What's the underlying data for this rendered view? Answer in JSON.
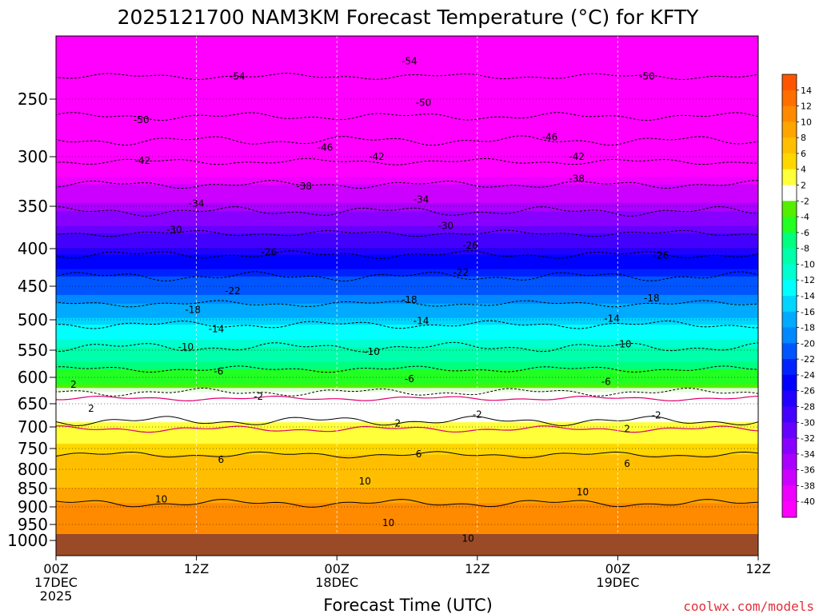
{
  "chart_data": {
    "type": "contour",
    "title": "2025121700 NAM3KM Forecast Temperature (°C) for KFTY",
    "xlabel": "Forecast Time (UTC)",
    "ylabel": "",
    "x_range_hours": [
      0,
      60
    ],
    "x_ticks": [
      {
        "hour": 0,
        "lines": [
          "00Z",
          "17DEC",
          "2025"
        ]
      },
      {
        "hour": 12,
        "lines": [
          "12Z"
        ]
      },
      {
        "hour": 24,
        "lines": [
          "00Z",
          "18DEC"
        ]
      },
      {
        "hour": 36,
        "lines": [
          "12Z"
        ]
      },
      {
        "hour": 48,
        "lines": [
          "00Z",
          "19DEC"
        ]
      },
      {
        "hour": 60,
        "lines": [
          "12Z"
        ]
      }
    ],
    "y_range_hpa": [
      200,
      1040
    ],
    "y_ticks": [
      250,
      300,
      350,
      400,
      450,
      500,
      550,
      600,
      650,
      700,
      750,
      800,
      850,
      900,
      950,
      1000
    ],
    "surface_pressure_hpa": 990,
    "colorbar_labels": [
      14,
      12,
      10,
      8,
      6,
      4,
      2,
      -2,
      -4,
      -6,
      -8,
      -10,
      -12,
      -14,
      -16,
      -18,
      -20,
      -22,
      -24,
      -26,
      -28,
      -30,
      -32,
      -34,
      -36,
      -38,
      -40
    ],
    "colorbar_colors": [
      "#ff5500",
      "#ff6f00",
      "#ff8a00",
      "#ffa500",
      "#ffbf00",
      "#ffd700",
      "#ffff3a",
      "#ffffff",
      "#55ee00",
      "#22ff22",
      "#00ff7f",
      "#00ffaa",
      "#00ffd0",
      "#00ffff",
      "#00d5ff",
      "#00aaff",
      "#0088ff",
      "#0055ff",
      "#0022ff",
      "#0000ff",
      "#2200ff",
      "#4400ff",
      "#6600ff",
      "#8800ff",
      "#aa00ff",
      "#cc00ff",
      "#ee00ff",
      "#ff00ff"
    ],
    "isotherms": [
      {
        "temp": -54,
        "pressure_hpa": 232
      },
      {
        "temp": -50,
        "pressure_hpa": 265
      },
      {
        "temp": -46,
        "pressure_hpa": 286
      },
      {
        "temp": -42,
        "pressure_hpa": 305
      },
      {
        "temp": -38,
        "pressure_hpa": 328
      },
      {
        "temp": -34,
        "pressure_hpa": 356
      },
      {
        "temp": -30,
        "pressure_hpa": 382
      },
      {
        "temp": -26,
        "pressure_hpa": 408
      },
      {
        "temp": -22,
        "pressure_hpa": 437
      },
      {
        "temp": -18,
        "pressure_hpa": 476
      },
      {
        "temp": -14,
        "pressure_hpa": 508
      },
      {
        "temp": -10,
        "pressure_hpa": 545
      },
      {
        "temp": -6,
        "pressure_hpa": 585
      },
      {
        "temp": -2,
        "pressure_hpa": 628
      },
      {
        "temp": 2,
        "pressure_hpa": 687
      },
      {
        "temp": 6,
        "pressure_hpa": 765
      },
      {
        "temp": 10,
        "pressure_hpa": 890
      }
    ],
    "contour_labels": [
      {
        "text": "-54",
        "hour": 15.5,
        "pressure_hpa": 232
      },
      {
        "text": "-54",
        "hour": 30.2,
        "pressure_hpa": 220
      },
      {
        "text": "-50",
        "hour": 50.5,
        "pressure_hpa": 232
      },
      {
        "text": "-50",
        "hour": 7.3,
        "pressure_hpa": 268
      },
      {
        "text": "-50",
        "hour": 31.4,
        "pressure_hpa": 253
      },
      {
        "text": "-46",
        "hour": 23.0,
        "pressure_hpa": 292
      },
      {
        "text": "-46",
        "hour": 42.2,
        "pressure_hpa": 283
      },
      {
        "text": "-42",
        "hour": 7.4,
        "pressure_hpa": 304
      },
      {
        "text": "-42",
        "hour": 27.4,
        "pressure_hpa": 300
      },
      {
        "text": "-42",
        "hour": 44.5,
        "pressure_hpa": 300
      },
      {
        "text": "-38",
        "hour": 21.2,
        "pressure_hpa": 330
      },
      {
        "text": "-38",
        "hour": 44.5,
        "pressure_hpa": 322
      },
      {
        "text": "-34",
        "hour": 12.0,
        "pressure_hpa": 347
      },
      {
        "text": "-34",
        "hour": 31.2,
        "pressure_hpa": 343
      },
      {
        "text": "-30",
        "hour": 10.1,
        "pressure_hpa": 378
      },
      {
        "text": "-30",
        "hour": 33.3,
        "pressure_hpa": 373
      },
      {
        "text": "-26",
        "hour": 18.2,
        "pressure_hpa": 405
      },
      {
        "text": "-26",
        "hour": 35.4,
        "pressure_hpa": 396
      },
      {
        "text": "-26",
        "hour": 51.7,
        "pressure_hpa": 409
      },
      {
        "text": "-22",
        "hour": 15.1,
        "pressure_hpa": 457
      },
      {
        "text": "-22",
        "hour": 34.6,
        "pressure_hpa": 432
      },
      {
        "text": "-18",
        "hour": 11.7,
        "pressure_hpa": 485
      },
      {
        "text": "-18",
        "hour": 30.2,
        "pressure_hpa": 470
      },
      {
        "text": "-18",
        "hour": 50.9,
        "pressure_hpa": 468
      },
      {
        "text": "-14",
        "hour": 13.7,
        "pressure_hpa": 515
      },
      {
        "text": "-14",
        "hour": 31.2,
        "pressure_hpa": 502
      },
      {
        "text": "-14",
        "hour": 47.5,
        "pressure_hpa": 498
      },
      {
        "text": "-10",
        "hour": 11.1,
        "pressure_hpa": 545
      },
      {
        "text": "-10",
        "hour": 27.0,
        "pressure_hpa": 553
      },
      {
        "text": "-10",
        "hour": 48.5,
        "pressure_hpa": 540
      },
      {
        "text": "-6",
        "hour": 13.9,
        "pressure_hpa": 589
      },
      {
        "text": "-6",
        "hour": 30.2,
        "pressure_hpa": 603
      },
      {
        "text": "-6",
        "hour": 47.0,
        "pressure_hpa": 608
      },
      {
        "text": "2",
        "hour": 1.5,
        "pressure_hpa": 614
      },
      {
        "text": "-2",
        "hour": 17.3,
        "pressure_hpa": 636
      },
      {
        "text": "-2",
        "hour": 36.0,
        "pressure_hpa": 673
      },
      {
        "text": "-2",
        "hour": 51.3,
        "pressure_hpa": 675
      },
      {
        "text": "2",
        "hour": 3.0,
        "pressure_hpa": 660
      },
      {
        "text": "2",
        "hour": 29.2,
        "pressure_hpa": 692
      },
      {
        "text": "2",
        "hour": 48.8,
        "pressure_hpa": 705
      },
      {
        "text": "6",
        "hour": 14.1,
        "pressure_hpa": 777
      },
      {
        "text": "6",
        "hour": 31.0,
        "pressure_hpa": 763
      },
      {
        "text": "6",
        "hour": 48.8,
        "pressure_hpa": 787
      },
      {
        "text": "10",
        "hour": 26.4,
        "pressure_hpa": 831
      },
      {
        "text": "10",
        "hour": 9.0,
        "pressure_hpa": 879
      },
      {
        "text": "10",
        "hour": 45.0,
        "pressure_hpa": 860
      },
      {
        "text": "10",
        "hour": 28.4,
        "pressure_hpa": 945
      },
      {
        "text": "10",
        "hour": 35.2,
        "pressure_hpa": 994
      }
    ]
  },
  "credit": "coolwx.com/models"
}
